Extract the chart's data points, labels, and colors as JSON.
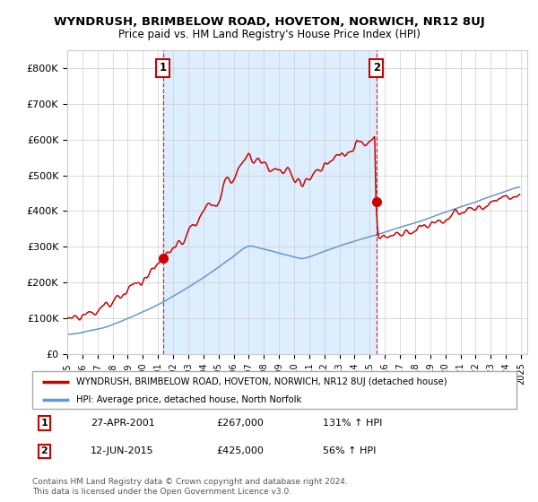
{
  "title": "WYNDRUSH, BRIMBELOW ROAD, HOVETON, NORWICH, NR12 8UJ",
  "subtitle": "Price paid vs. HM Land Registry's House Price Index (HPI)",
  "ylim": [
    0,
    850000
  ],
  "yticks": [
    0,
    100000,
    200000,
    300000,
    400000,
    500000,
    600000,
    700000,
    800000
  ],
  "ytick_labels": [
    "£0",
    "£100K",
    "£200K",
    "£300K",
    "£400K",
    "£500K",
    "£600K",
    "£700K",
    "£800K"
  ],
  "red_line_label": "WYNDRUSH, BRIMBELOW ROAD, HOVETON, NORWICH, NR12 8UJ (detached house)",
  "blue_line_label": "HPI: Average price, detached house, North Norfolk",
  "purchase1_date": "27-APR-2001",
  "purchase1_price": 267000,
  "purchase1_pct": "131%",
  "purchase2_date": "12-JUN-2015",
  "purchase2_price": 425000,
  "purchase2_pct": "56%",
  "footer": "Contains HM Land Registry data © Crown copyright and database right 2024.\nThis data is licensed under the Open Government Licence v3.0.",
  "red_color": "#cc0000",
  "blue_color": "#6699cc",
  "shade_color": "#ddeeff",
  "dashed_color": "#cc0000",
  "bg_color": "#ffffff",
  "grid_color": "#cccccc"
}
